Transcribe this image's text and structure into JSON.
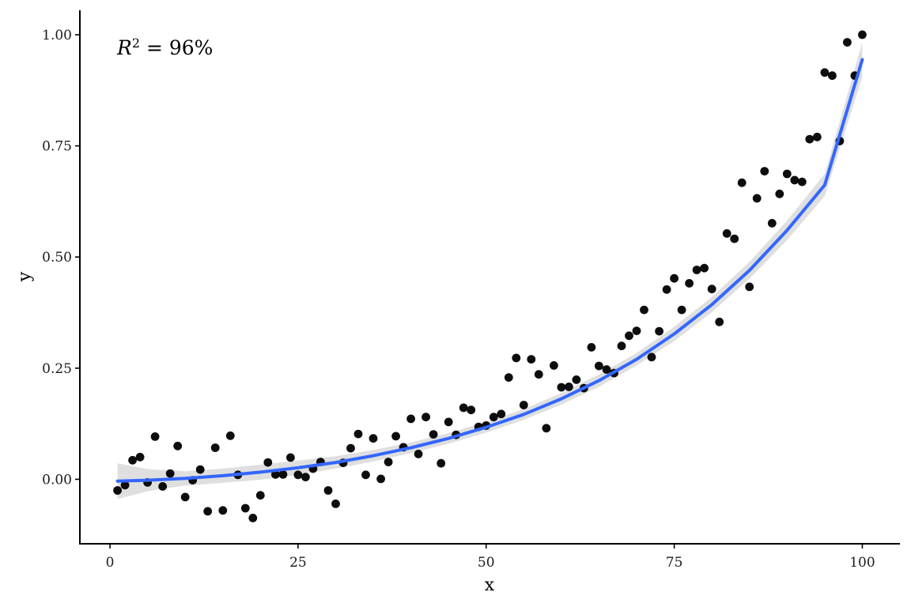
{
  "chart_data": {
    "type": "scatter",
    "xlabel": "x",
    "ylabel": "y",
    "xlim": [
      -4,
      105
    ],
    "ylim": [
      -0.145,
      1.055
    ],
    "x_ticks": [
      0,
      25,
      50,
      75,
      100
    ],
    "x_tick_labels": [
      "0",
      "25",
      "50",
      "75",
      "100"
    ],
    "y_ticks": [
      0,
      0.25,
      0.5,
      0.75,
      1.0
    ],
    "y_tick_labels": [
      "0.00",
      "0.25",
      "0.50",
      "0.75",
      "1.00"
    ],
    "grid": false,
    "annotation": {
      "base": "R",
      "superscript": "2",
      "rest": " = 96%"
    },
    "series": [
      {
        "type": "scatter",
        "color": "#000000",
        "x": [
          1,
          2,
          3,
          4,
          5,
          6,
          7,
          8,
          9,
          10,
          11,
          12,
          13,
          14,
          15,
          16,
          17,
          18,
          19,
          20,
          21,
          22,
          23,
          24,
          25,
          26,
          27,
          28,
          29,
          30,
          31,
          32,
          33,
          34,
          35,
          36,
          37,
          38,
          39,
          40,
          41,
          42,
          43,
          44,
          45,
          46,
          47,
          48,
          49,
          50,
          51,
          52,
          53,
          54,
          55,
          56,
          57,
          58,
          59,
          60,
          61,
          62,
          63,
          64,
          65,
          66,
          67,
          68,
          69,
          70,
          71,
          72,
          73,
          74,
          75,
          76,
          77,
          78,
          79,
          80,
          81,
          82,
          83,
          84,
          85,
          86,
          87,
          88,
          89,
          90,
          91,
          92,
          93,
          94,
          95,
          96,
          97,
          98,
          99,
          100
        ],
        "y": [
          -0.025,
          -0.013,
          0.043,
          0.05,
          -0.007,
          0.096,
          -0.016,
          0.013,
          0.075,
          -0.04,
          -0.002,
          0.022,
          -0.072,
          0.071,
          -0.07,
          0.098,
          0.01,
          -0.065,
          -0.087,
          -0.036,
          0.038,
          0.011,
          0.011,
          0.049,
          0.01,
          0.005,
          0.024,
          0.039,
          -0.025,
          -0.055,
          0.037,
          0.07,
          0.102,
          0.01,
          0.092,
          0.001,
          0.039,
          0.097,
          0.072,
          0.136,
          0.057,
          0.14,
          0.101,
          0.036,
          0.129,
          0.1,
          0.161,
          0.156,
          0.118,
          0.121,
          0.14,
          0.147,
          0.229,
          0.273,
          0.167,
          0.27,
          0.236,
          0.115,
          0.256,
          0.207,
          0.208,
          0.224,
          0.205,
          0.297,
          0.255,
          0.247,
          0.239,
          0.3,
          0.323,
          0.334,
          0.381,
          0.275,
          0.333,
          0.427,
          0.452,
          0.381,
          0.441,
          0.471,
          0.475,
          0.428,
          0.354,
          0.553,
          0.541,
          0.667,
          0.433,
          0.632,
          0.693,
          0.576,
          0.642,
          0.687,
          0.673,
          0.669,
          0.765,
          0.77,
          0.915,
          0.908,
          0.761,
          0.983,
          0.908,
          1.0
        ]
      },
      {
        "type": "line",
        "name": "fit",
        "color": "#3366ff",
        "band_color": "#d9d9d9",
        "x": [
          1,
          5,
          10,
          15,
          20,
          25,
          30,
          35,
          40,
          45,
          50,
          55,
          60,
          65,
          70,
          75,
          80,
          85,
          90,
          95,
          100
        ],
        "y": [
          -0.004,
          -0.002,
          0.002,
          0.008,
          0.016,
          0.026,
          0.038,
          0.053,
          0.071,
          0.092,
          0.117,
          0.146,
          0.181,
          0.222,
          0.27,
          0.327,
          0.393,
          0.47,
          0.56,
          0.662,
          0.944
        ],
        "band_lower": [
          -0.044,
          -0.027,
          -0.014,
          -0.008,
          -0.001,
          0.01,
          0.024,
          0.04,
          0.059,
          0.08,
          0.105,
          0.134,
          0.168,
          0.208,
          0.256,
          0.311,
          0.376,
          0.451,
          0.538,
          0.637,
          0.905
        ],
        "band_upper": [
          0.036,
          0.023,
          0.018,
          0.024,
          0.033,
          0.042,
          0.052,
          0.066,
          0.083,
          0.104,
          0.129,
          0.158,
          0.194,
          0.236,
          0.284,
          0.343,
          0.41,
          0.489,
          0.582,
          0.687,
          0.983
        ]
      }
    ]
  }
}
